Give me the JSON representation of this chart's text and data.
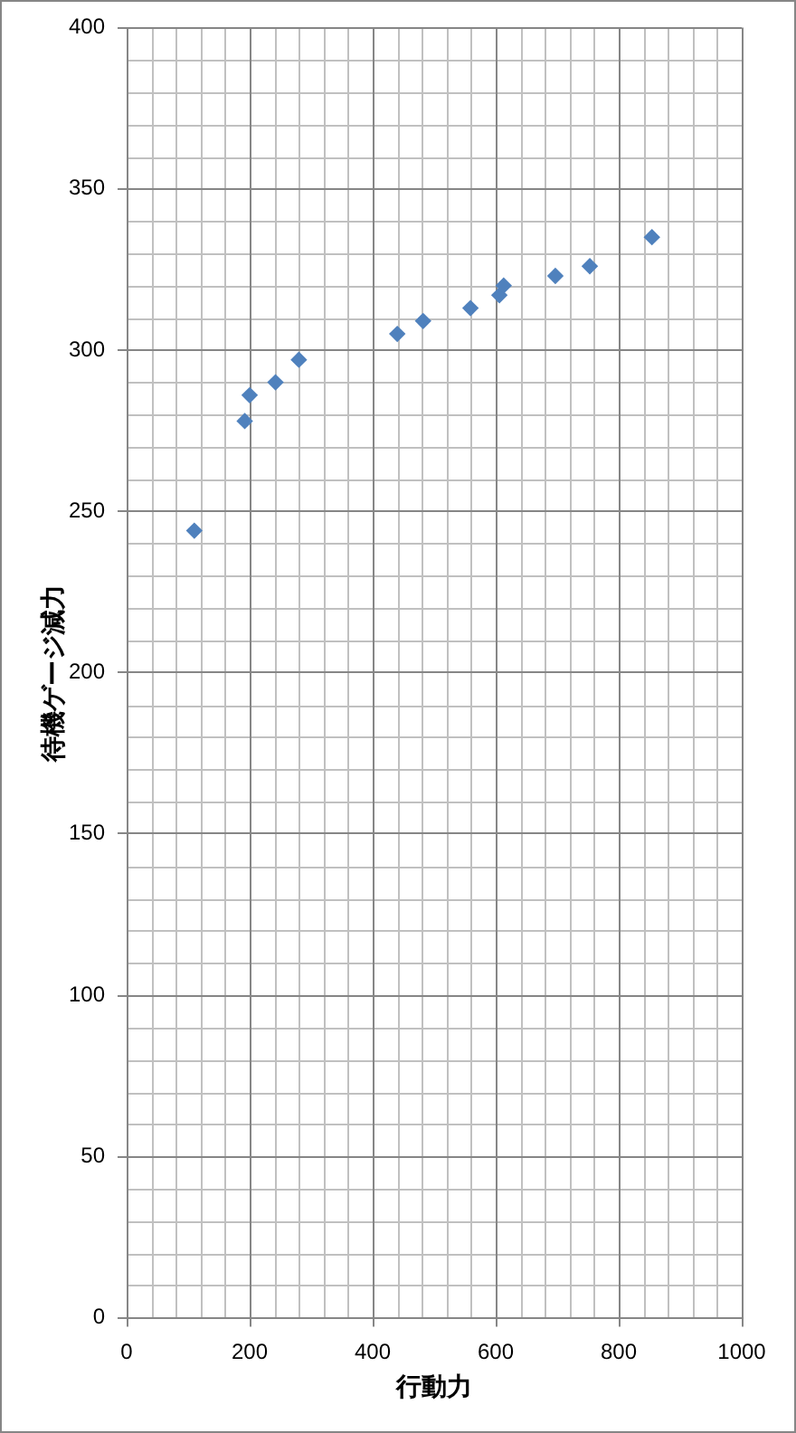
{
  "chart_data": {
    "type": "scatter",
    "xlabel": "行動力",
    "ylabel": "待機ゲージ減力",
    "x": [
      110,
      192,
      200,
      242,
      280,
      440,
      482,
      559,
      606,
      613,
      697,
      753,
      854
    ],
    "values": [
      244,
      278,
      286,
      290,
      297,
      305,
      309,
      313,
      317,
      320,
      323,
      326,
      335
    ],
    "color": "#4f81bd",
    "marker": "diamond",
    "xlim": [
      0,
      1000
    ],
    "xticks": [
      0,
      200,
      400,
      600,
      800,
      1000
    ],
    "ylim": [
      0,
      400
    ],
    "yticks": [
      0,
      50,
      100,
      150,
      200,
      250,
      300,
      350,
      400
    ],
    "grid": true
  }
}
